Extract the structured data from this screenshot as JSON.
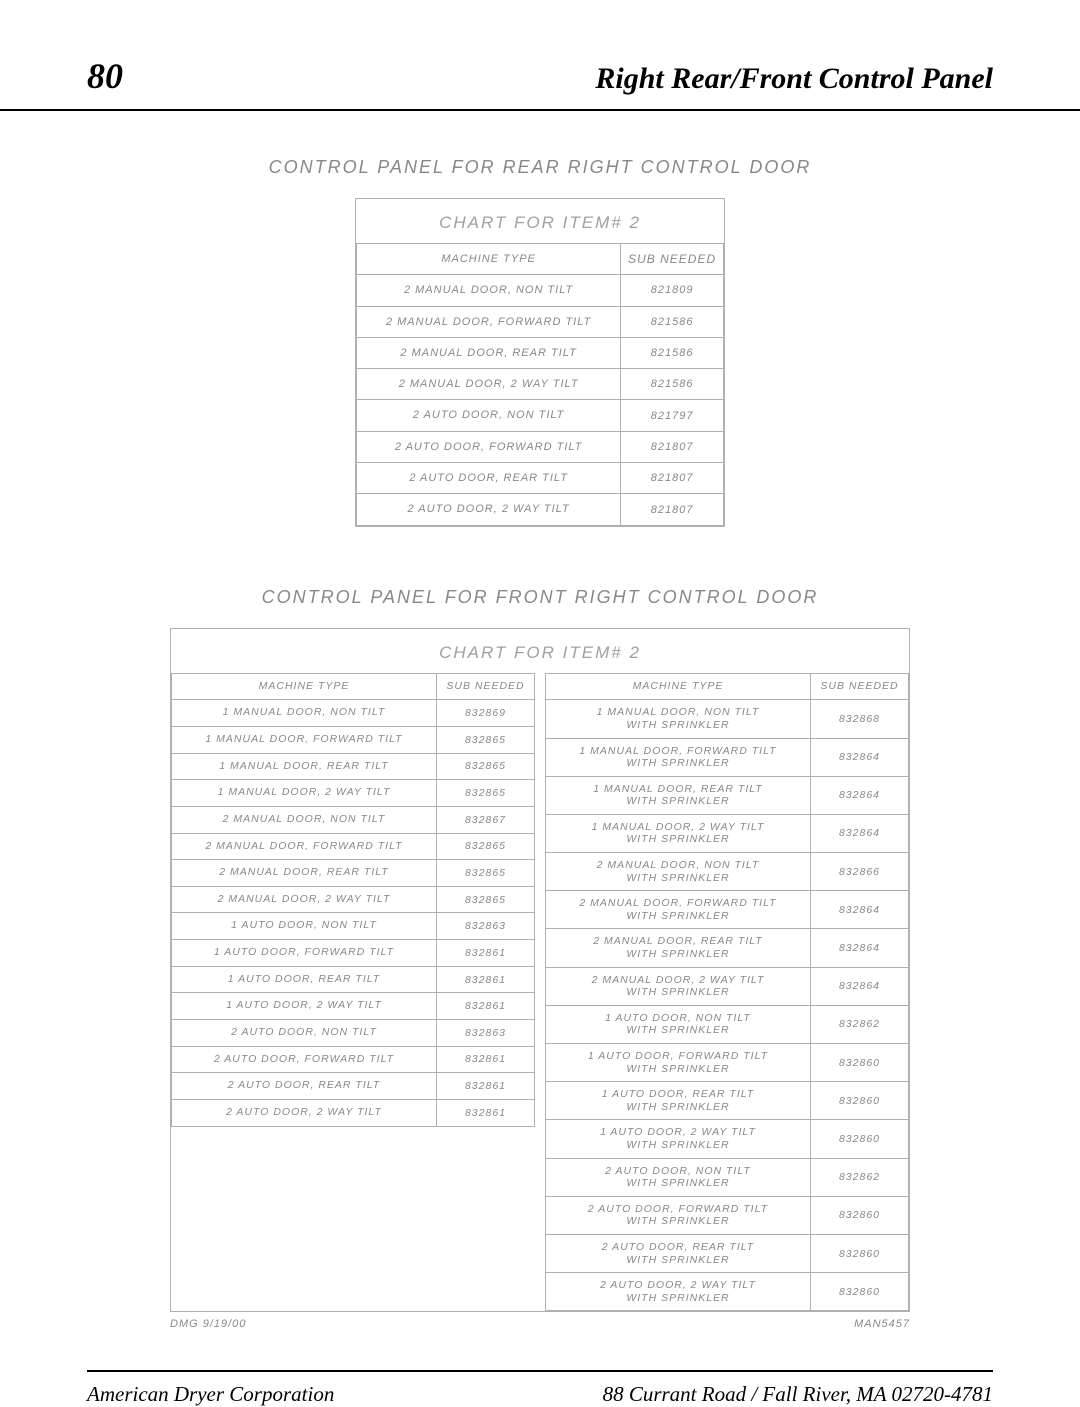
{
  "header": {
    "page_number": "80",
    "title": "Right Rear/Front Control Panel"
  },
  "section1": {
    "title": "CONTROL PANEL FOR REAR RIGHT CONTROL DOOR",
    "chart_title": "CHART FOR ITEM# 2",
    "columns": {
      "c1": "MACHINE TYPE",
      "c2": "SUB NEEDED"
    },
    "rows": [
      {
        "type": "2 MANUAL DOOR, NON TILT",
        "sub": "821809"
      },
      {
        "type": "2 MANUAL DOOR, FORWARD TILT",
        "sub": "821586"
      },
      {
        "type": "2 MANUAL DOOR, REAR TILT",
        "sub": "821586"
      },
      {
        "type": "2 MANUAL DOOR, 2 WAY TILT",
        "sub": "821586"
      },
      {
        "type": "2 AUTO DOOR, NON TILT",
        "sub": "821797"
      },
      {
        "type": "2 AUTO DOOR, FORWARD TILT",
        "sub": "821807"
      },
      {
        "type": "2 AUTO DOOR, REAR TILT",
        "sub": "821807"
      },
      {
        "type": "2 AUTO DOOR, 2 WAY TILT",
        "sub": "821807"
      }
    ]
  },
  "section2": {
    "title": "CONTROL PANEL FOR FRONT RIGHT CONTROL DOOR",
    "chart_title": "CHART FOR ITEM# 2",
    "columns": {
      "c1": "MACHINE TYPE",
      "c2": "SUB NEEDED"
    },
    "left_rows": [
      {
        "type": "1 MANUAL DOOR, NON TILT",
        "sub": "832869"
      },
      {
        "type": "1 MANUAL DOOR, FORWARD TILT",
        "sub": "832865"
      },
      {
        "type": "1 MANUAL DOOR, REAR TILT",
        "sub": "832865"
      },
      {
        "type": "1 MANUAL DOOR, 2 WAY TILT",
        "sub": "832865"
      },
      {
        "type": "2 MANUAL DOOR, NON TILT",
        "sub": "832867"
      },
      {
        "type": "2 MANUAL DOOR, FORWARD TILT",
        "sub": "832865"
      },
      {
        "type": "2 MANUAL DOOR, REAR TILT",
        "sub": "832865"
      },
      {
        "type": "2 MANUAL DOOR, 2 WAY TILT",
        "sub": "832865"
      },
      {
        "type": "1 AUTO DOOR, NON TILT",
        "sub": "832863"
      },
      {
        "type": "1 AUTO DOOR, FORWARD TILT",
        "sub": "832861"
      },
      {
        "type": "1 AUTO DOOR, REAR TILT",
        "sub": "832861"
      },
      {
        "type": "1 AUTO DOOR, 2 WAY TILT",
        "sub": "832861"
      },
      {
        "type": "2 AUTO DOOR, NON TILT",
        "sub": "832863"
      },
      {
        "type": "2 AUTO DOOR, FORWARD TILT",
        "sub": "832861"
      },
      {
        "type": "2 AUTO DOOR, REAR TILT",
        "sub": "832861"
      },
      {
        "type": "2 AUTO DOOR, 2 WAY TILT",
        "sub": "832861"
      }
    ],
    "right_rows": [
      {
        "l1": "1 MANUAL DOOR, NON TILT",
        "l2": "WITH SPRINKLER",
        "sub": "832868"
      },
      {
        "l1": "1 MANUAL DOOR, FORWARD TILT",
        "l2": "WITH SPRINKLER",
        "sub": "832864"
      },
      {
        "l1": "1 MANUAL DOOR, REAR TILT",
        "l2": "WITH SPRINKLER",
        "sub": "832864"
      },
      {
        "l1": "1 MANUAL DOOR, 2 WAY TILT",
        "l2": "WITH SPRINKLER",
        "sub": "832864"
      },
      {
        "l1": "2 MANUAL DOOR, NON TILT",
        "l2": "WITH SPRINKLER",
        "sub": "832866"
      },
      {
        "l1": "2 MANUAL DOOR, FORWARD TILT",
        "l2": "WITH SPRINKLER",
        "sub": "832864"
      },
      {
        "l1": "2 MANUAL DOOR, REAR TILT",
        "l2": "WITH SPRINKLER",
        "sub": "832864"
      },
      {
        "l1": "2 MANUAL DOOR, 2 WAY TILT",
        "l2": "WITH SPRINKLER",
        "sub": "832864"
      },
      {
        "l1": "1 AUTO DOOR, NON TILT",
        "l2": "WITH SPRINKLER",
        "sub": "832862"
      },
      {
        "l1": "1 AUTO DOOR, FORWARD TILT",
        "l2": "WITH SPRINKLER",
        "sub": "832860"
      },
      {
        "l1": "1 AUTO DOOR, REAR TILT",
        "l2": "WITH SPRINKLER",
        "sub": "832860"
      },
      {
        "l1": "1 AUTO DOOR, 2 WAY TILT",
        "l2": "WITH SPRINKLER",
        "sub": "832860"
      },
      {
        "l1": "2 AUTO DOOR, NON TILT",
        "l2": "WITH SPRINKLER",
        "sub": "832862"
      },
      {
        "l1": "2 AUTO DOOR, FORWARD TILT",
        "l2": "WITH SPRINKLER",
        "sub": "832860"
      },
      {
        "l1": "2 AUTO DOOR, REAR TILT",
        "l2": "WITH SPRINKLER",
        "sub": "832860"
      },
      {
        "l1": "2 AUTO DOOR, 2 WAY TILT",
        "l2": "WITH SPRINKLER",
        "sub": "832860"
      }
    ]
  },
  "meta": {
    "left": "DMG 9/19/00",
    "right": "MAN5457"
  },
  "footer": {
    "left": "American Dryer Corporation",
    "right": "88 Currant Road / Fall River, MA 02720-4781"
  },
  "style": {
    "text_gray": "#888888",
    "border_gray": "#b0b0b0",
    "rule_color": "#000000"
  }
}
